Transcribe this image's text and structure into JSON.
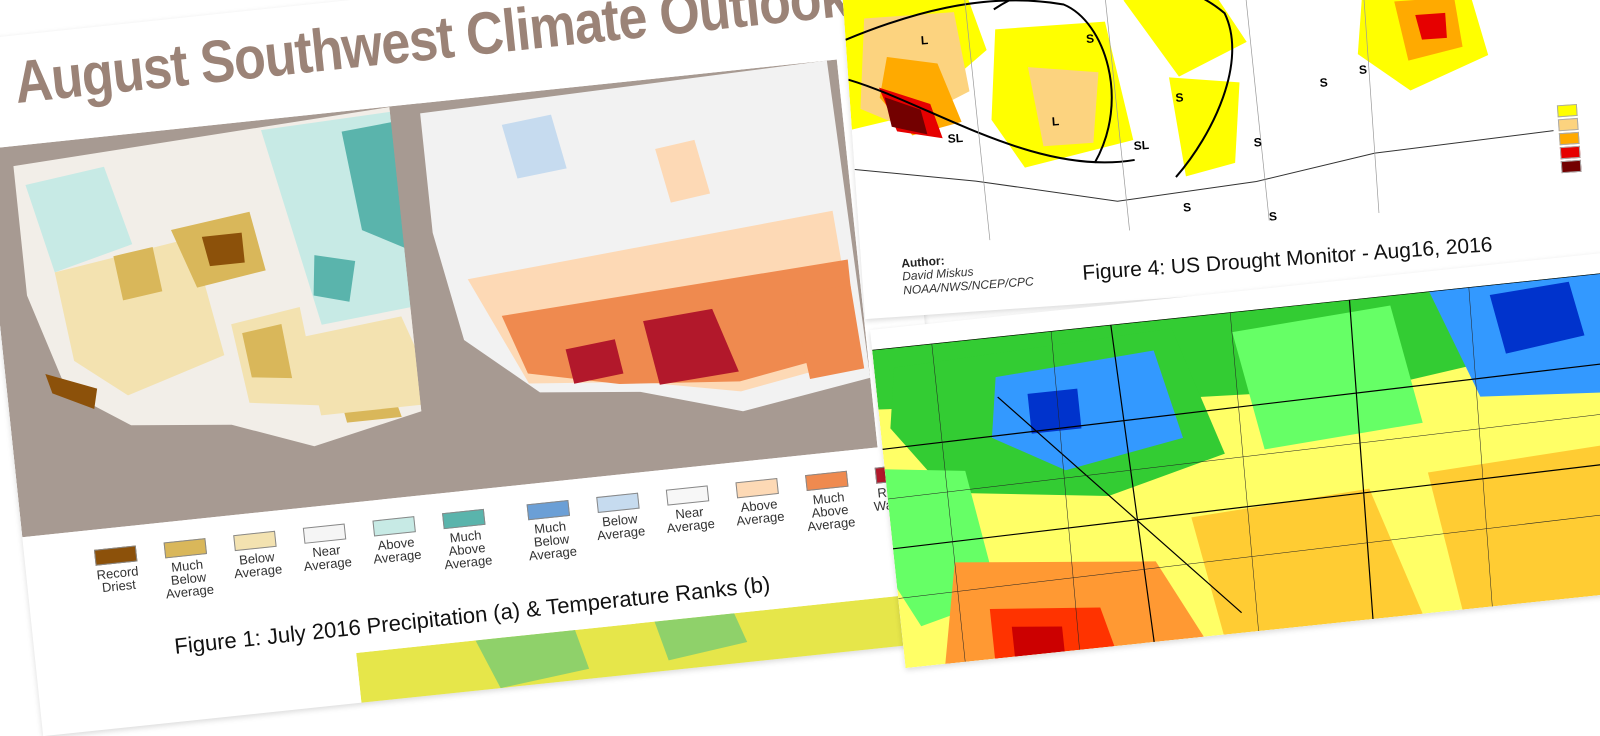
{
  "title": "August Southwest Climate Outlook",
  "precip_legend": [
    {
      "label": "Record Driest",
      "color": "#8c510a"
    },
    {
      "label": "Much Below Average",
      "color": "#d9b75a"
    },
    {
      "label": "Below Average",
      "color": "#f3e2b0"
    },
    {
      "label": "Near Average",
      "color": "#f5f5f5"
    },
    {
      "label": "Above Average",
      "color": "#c7eae5"
    },
    {
      "label": "Much Above Average",
      "color": "#5ab4ac"
    }
  ],
  "temp_legend": [
    {
      "label": "Much Below Average",
      "color": "#6b9fd6"
    },
    {
      "label": "Below Average",
      "color": "#c6dbef"
    },
    {
      "label": "Near Average",
      "color": "#f7f7f7"
    },
    {
      "label": "Above Average",
      "color": "#fdd9b5"
    },
    {
      "label": "Much Above Average",
      "color": "#ef8a4f"
    },
    {
      "label": "Record Warmest",
      "color": "#b2182b"
    }
  ],
  "fig1_caption": "Figure 1: July 2016 Precipitation (a) & Temperature Ranks (b)",
  "drought": {
    "labels": [
      "S",
      "S",
      "S",
      "L",
      "L",
      "SL",
      "SL",
      "S",
      "S",
      "S",
      "S",
      "S",
      "S",
      "S"
    ],
    "author_label": "Author:",
    "author_name": "David Miskus",
    "author_org": "NOAA/NWS/NCEP/CPC",
    "caption": "Figure 4: US Drought Monitor - Aug16, 2016"
  }
}
